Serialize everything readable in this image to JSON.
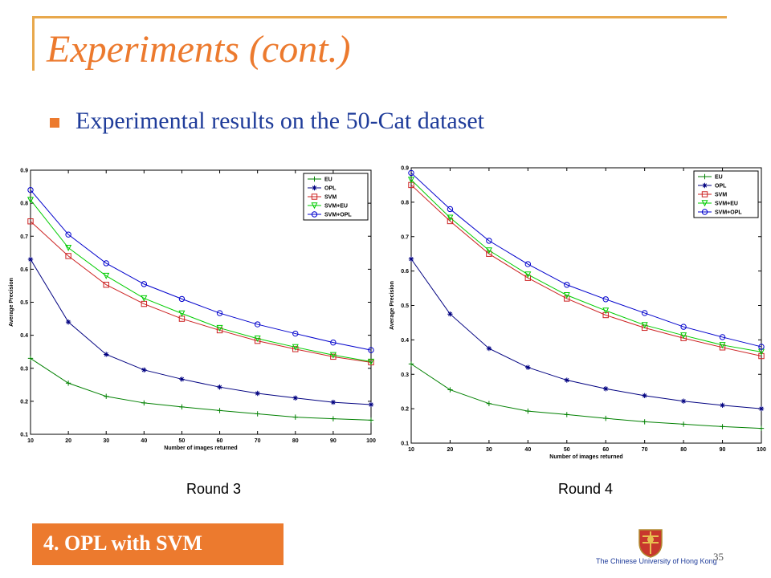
{
  "slide": {
    "title": "Experiments (cont.)",
    "bullet": "Experimental results on the 50-Cat dataset",
    "section": "4. OPL with SVM",
    "university": "The Chinese University of Hong Kong",
    "page_number": "35",
    "round_labels": [
      "Round 3",
      "Round 4"
    ]
  },
  "colors": {
    "accent": "#EC7A2E",
    "text_blue": "#1F3C9A",
    "EU": "#008000",
    "OPL": "#000080",
    "SVM": "#CC2222",
    "SVM+EU": "#00CC00",
    "SVM+OPL": "#0000CC"
  },
  "chart_data": [
    {
      "type": "line",
      "title": "",
      "xlabel": "Number of images returned",
      "ylabel": "Average Precision",
      "x": [
        10,
        20,
        30,
        40,
        50,
        60,
        70,
        80,
        90,
        100
      ],
      "xlim": [
        10,
        100
      ],
      "ylim": [
        0.1,
        0.9
      ],
      "xticks": [
        "10",
        "20",
        "30",
        "40",
        "50",
        "60",
        "70",
        "80",
        "90",
        "100"
      ],
      "yticks": [
        "0.1",
        "0.2",
        "0.3",
        "0.4",
        "0.5",
        "0.6",
        "0.7",
        "0.8",
        "0.9"
      ],
      "grid": false,
      "legend_position": "top-right",
      "series": [
        {
          "name": "EU",
          "marker": "plus",
          "values": [
            0.33,
            0.255,
            0.215,
            0.195,
            0.183,
            0.172,
            0.162,
            0.152,
            0.147,
            0.143
          ]
        },
        {
          "name": "OPL",
          "marker": "star",
          "values": [
            0.63,
            0.44,
            0.342,
            0.295,
            0.267,
            0.243,
            0.224,
            0.21,
            0.197,
            0.19
          ]
        },
        {
          "name": "SVM",
          "marker": "square",
          "values": [
            0.745,
            0.64,
            0.553,
            0.495,
            0.45,
            0.415,
            0.383,
            0.358,
            0.335,
            0.318
          ]
        },
        {
          "name": "SVM+EU",
          "marker": "triangle-down",
          "values": [
            0.81,
            0.665,
            0.58,
            0.512,
            0.466,
            0.422,
            0.39,
            0.364,
            0.34,
            0.32
          ]
        },
        {
          "name": "SVM+OPL",
          "marker": "circle",
          "values": [
            0.84,
            0.705,
            0.618,
            0.555,
            0.51,
            0.467,
            0.433,
            0.405,
            0.378,
            0.355
          ]
        }
      ]
    },
    {
      "type": "line",
      "title": "",
      "xlabel": "Number of images returned",
      "ylabel": "Average Precision",
      "x": [
        10,
        20,
        30,
        40,
        50,
        60,
        70,
        80,
        90,
        100
      ],
      "xlim": [
        10,
        100
      ],
      "ylim": [
        0.1,
        0.9
      ],
      "xticks": [
        "10",
        "20",
        "30",
        "40",
        "50",
        "60",
        "70",
        "80",
        "90",
        "100"
      ],
      "yticks": [
        "0.1",
        "0.2",
        "0.3",
        "0.4",
        "0.5",
        "0.6",
        "0.7",
        "0.8",
        "0.9"
      ],
      "grid": false,
      "legend_position": "top-right",
      "series": [
        {
          "name": "EU",
          "marker": "plus",
          "values": [
            0.33,
            0.255,
            0.215,
            0.193,
            0.183,
            0.172,
            0.162,
            0.155,
            0.148,
            0.143
          ]
        },
        {
          "name": "OPL",
          "marker": "star",
          "values": [
            0.635,
            0.475,
            0.375,
            0.32,
            0.283,
            0.258,
            0.238,
            0.222,
            0.21,
            0.2
          ]
        },
        {
          "name": "SVM",
          "marker": "square",
          "values": [
            0.85,
            0.745,
            0.65,
            0.58,
            0.52,
            0.472,
            0.435,
            0.405,
            0.378,
            0.353
          ]
        },
        {
          "name": "SVM+EU",
          "marker": "triangle-down",
          "values": [
            0.865,
            0.755,
            0.66,
            0.59,
            0.53,
            0.485,
            0.443,
            0.413,
            0.385,
            0.365
          ]
        },
        {
          "name": "SVM+OPL",
          "marker": "circle",
          "values": [
            0.885,
            0.78,
            0.688,
            0.62,
            0.56,
            0.518,
            0.478,
            0.438,
            0.408,
            0.38
          ]
        }
      ]
    }
  ]
}
